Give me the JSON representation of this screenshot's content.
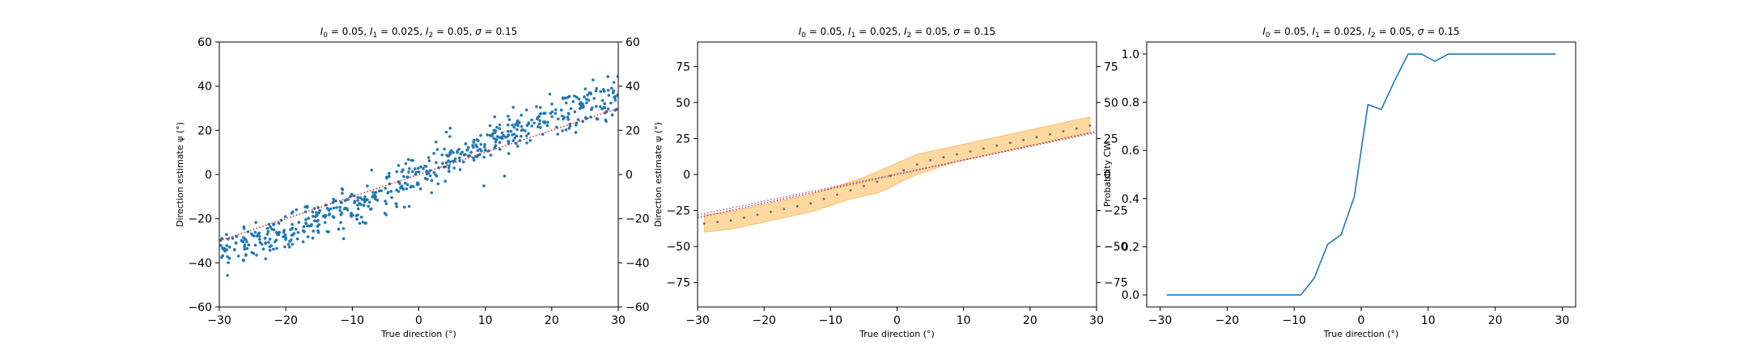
{
  "chart_data": [
    {
      "type": "scatter",
      "title": "I_0 = 0.05, I_1 = 0.025, I_2 = 0.05, σ = 0.15",
      "title_parts": {
        "i0": "0.05",
        "i1": "0.025",
        "i2": "0.05",
        "sigma": "0.15"
      },
      "xlabel": "True direction (°)",
      "ylabel": "Direction estimate ψ (°)",
      "xlim": [
        -30,
        30
      ],
      "ylim": [
        -60,
        60
      ],
      "xticks": [
        -30,
        -20,
        -10,
        0,
        10,
        20,
        30
      ],
      "yticks": [
        -60,
        -40,
        -20,
        0,
        20,
        40,
        60
      ],
      "right_axis_ticks": [
        -60,
        -40,
        -20,
        0,
        20,
        40,
        60
      ],
      "grid": false,
      "point_color": "#1f77b4",
      "reference_line": {
        "style": "dotted",
        "color": "#d62728",
        "x": [
          -30,
          30
        ],
        "y": [
          -30,
          30
        ]
      },
      "trend": {
        "x": [
          -30,
          -25,
          -20,
          -15,
          -10,
          -5,
          0,
          5,
          10,
          15,
          20,
          25,
          30
        ],
        "y": [
          -34,
          -31,
          -26,
          -19,
          -14,
          -8,
          0,
          8,
          14,
          20,
          26,
          31,
          35
        ]
      },
      "spread": 4.5,
      "n_points": 600
    },
    {
      "type": "line",
      "title": "I_0 = 0.05, I_1 = 0.025, I_2 = 0.05, σ = 0.15",
      "title_parts": {
        "i0": "0.05",
        "i1": "0.025",
        "i2": "0.05",
        "sigma": "0.15"
      },
      "xlabel": "True direction (°)",
      "ylabel": "Direction estimate ψ (°)",
      "xlim": [
        -30,
        30
      ],
      "ylim": [
        -92,
        92
      ],
      "xticks": [
        -30,
        -20,
        -10,
        0,
        10,
        20,
        30
      ],
      "yticks": [
        -75,
        -50,
        -25,
        0,
        25,
        50,
        75
      ],
      "right_axis_ticks": [
        -75,
        -50,
        -25,
        0,
        25,
        50,
        75
      ],
      "grid": false,
      "band_color": "#fdd9a0",
      "band_edge_color": "#f7c070",
      "marker_color": "#666666",
      "reference_line": {
        "style": "dotted",
        "color": "#d62728",
        "x": [
          -30,
          30
        ],
        "y": [
          -30,
          30
        ]
      },
      "estimator_line": {
        "style": "dotted",
        "color": "#9467bd",
        "x": [
          -30,
          30
        ],
        "y": [
          -28,
          29
        ]
      },
      "x": [
        -29,
        -27,
        -25,
        -23,
        -21,
        -19,
        -17,
        -15,
        -13,
        -11,
        -9,
        -7,
        -5,
        -3,
        -1,
        1,
        3,
        5,
        7,
        9,
        11,
        13,
        15,
        17,
        19,
        21,
        23,
        25,
        27,
        29
      ],
      "mean": [
        -34,
        -33,
        -32,
        -30,
        -28,
        -26,
        -24,
        -22,
        -20,
        -17,
        -14,
        -11,
        -8,
        -5,
        -1,
        3,
        7,
        10,
        12,
        14,
        16,
        18,
        20,
        22,
        24,
        26,
        28,
        30,
        32,
        34
      ],
      "band_lower": [
        -40,
        -39,
        -38,
        -36,
        -34,
        -32,
        -30,
        -28,
        -26,
        -23,
        -20,
        -17,
        -15,
        -13,
        -9,
        -4,
        0,
        3,
        6,
        9,
        11,
        13,
        15,
        17,
        19,
        21,
        23,
        25,
        27,
        29
      ],
      "band_upper": [
        -28,
        -27,
        -26,
        -24,
        -22,
        -20,
        -18,
        -16,
        -14,
        -11,
        -8,
        -5,
        -2,
        2,
        6,
        10,
        14,
        16,
        18,
        20,
        22,
        24,
        26,
        28,
        30,
        32,
        34,
        36,
        38,
        40
      ]
    },
    {
      "type": "line",
      "title": "I_0 = 0.05, I_1 = 0.025, I_2 = 0.05, σ = 0.15",
      "title_parts": {
        "i0": "0.05",
        "i1": "0.025",
        "i2": "0.05",
        "sigma": "0.15"
      },
      "xlabel": "True direction (°)",
      "ylabel": "Probability CW",
      "xlim": [
        -32,
        32
      ],
      "ylim": [
        -0.05,
        1.05
      ],
      "xticks": [
        -30,
        -20,
        -10,
        0,
        10,
        20,
        30
      ],
      "yticks": [
        0.0,
        0.2,
        0.4,
        0.6,
        0.8,
        1.0
      ],
      "ytick_labels": [
        "0.0",
        "0.2",
        "0.4",
        "0.6",
        "0.8",
        "1.0"
      ],
      "grid": false,
      "line_color": "#1f77b4",
      "x": [
        -29,
        -27,
        -25,
        -23,
        -21,
        -19,
        -17,
        -15,
        -13,
        -11,
        -9,
        -7,
        -5,
        -3,
        -1,
        1,
        3,
        5,
        7,
        9,
        11,
        13,
        15,
        17,
        19,
        21,
        23,
        25,
        27,
        29
      ],
      "y": [
        0,
        0,
        0,
        0,
        0,
        0,
        0,
        0,
        0,
        0,
        0,
        0.07,
        0.21,
        0.25,
        0.41,
        0.79,
        0.77,
        0.89,
        1.0,
        1.0,
        0.97,
        1.0,
        1.0,
        1.0,
        1.0,
        1.0,
        1.0,
        1.0,
        1.0,
        1.0
      ]
    }
  ]
}
